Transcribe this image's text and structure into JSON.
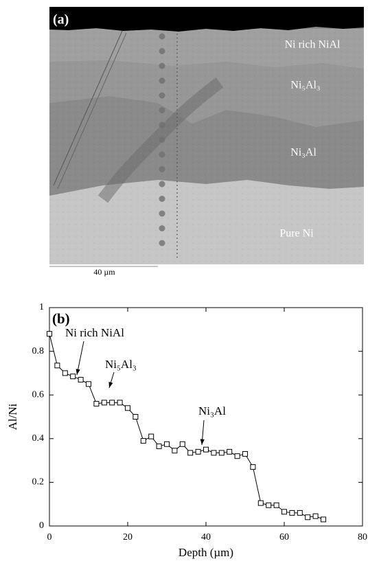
{
  "micrograph": {
    "panel_label": "(a)",
    "labels": [
      "Ni rich NiAl",
      "Ni₅Al₃",
      "Ni₃Al",
      "Pure Ni"
    ],
    "scale_bar": "40 µm"
  },
  "chart_data": {
    "type": "line",
    "panel_label": "(b)",
    "x_label": "Depth (µm)",
    "y_label": "Al/Ni",
    "x": [
      0,
      2,
      4,
      6,
      8,
      10,
      12,
      14,
      16,
      18,
      20,
      22,
      24,
      26,
      28,
      30,
      32,
      34,
      36,
      38,
      40,
      42,
      44,
      46,
      48,
      50,
      52,
      54,
      56,
      58,
      60,
      62,
      64,
      66,
      68,
      70
    ],
    "series": [
      {
        "name": "Al/Ni",
        "color": "#000000",
        "values": [
          0.88,
          0.735,
          0.7,
          0.685,
          0.67,
          0.65,
          0.56,
          0.565,
          0.565,
          0.565,
          0.54,
          0.5,
          0.39,
          0.41,
          0.365,
          0.375,
          0.345,
          0.375,
          0.335,
          0.34,
          0.35,
          0.335,
          0.335,
          0.34,
          0.32,
          0.33,
          0.27,
          0.105,
          0.095,
          0.095,
          0.065,
          0.06,
          0.06,
          0.04,
          0.045,
          0.03
        ]
      }
    ],
    "annotations": [
      "Ni rich NiAl",
      "Ni₅Al₃",
      "Ni₃Al"
    ],
    "xlim": [
      0,
      80
    ],
    "xticks": [
      0,
      20,
      40,
      60,
      80
    ],
    "ylim": [
      0,
      1
    ],
    "yticks": [
      0,
      0.2,
      0.4,
      0.6,
      0.8,
      1
    ],
    "grid": false
  }
}
